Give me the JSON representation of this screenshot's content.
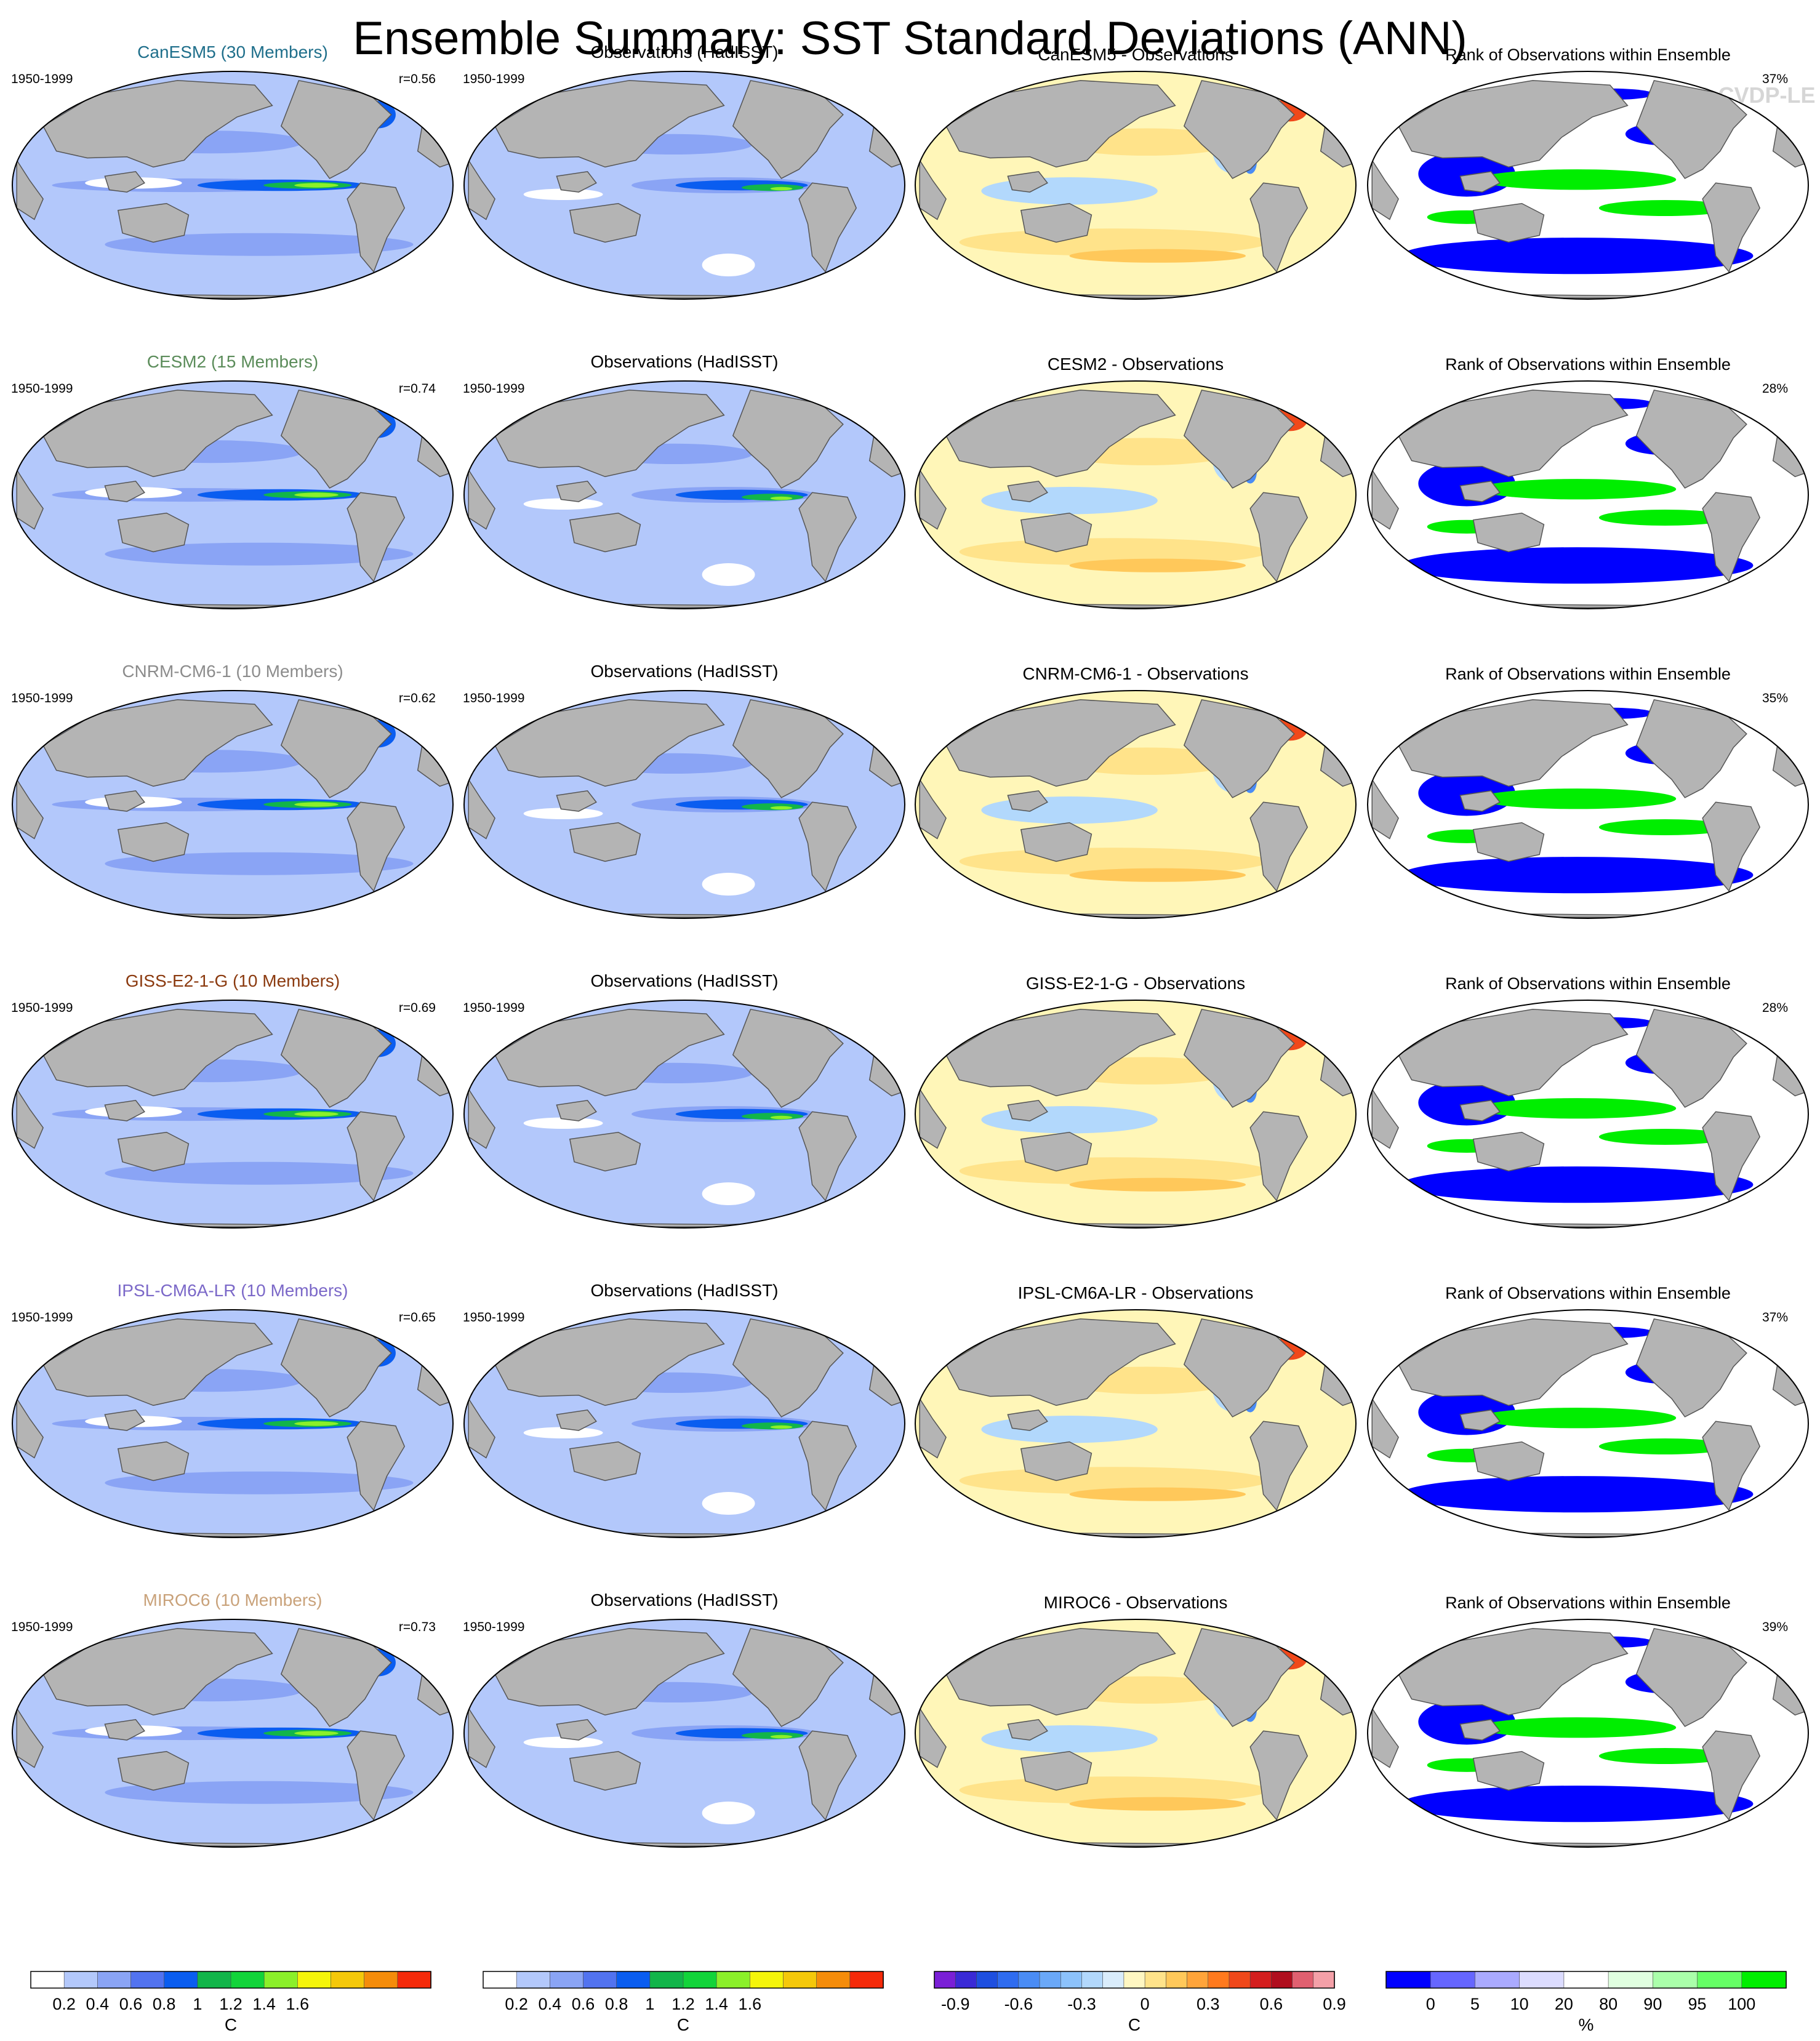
{
  "title": "Ensemble Summary: SST Standard Deviations (ANN)",
  "watermark": "© CVDP-LE",
  "colors": {
    "land": "#b4b4b4",
    "ocean_base_model": "#b3c8fb",
    "ocean_base_diff": "#fff6b8",
    "ocean_base_rank": "#ffffff",
    "coast": "#555555"
  },
  "rows": [
    {
      "model": "CanESM5 (30 Members)",
      "model_color": "#1f6f8b",
      "period_model": "1950-1999",
      "r": "r=0.56",
      "obs_title": "Observations (HadISST)",
      "period_obs": "1950-1999",
      "diff_title": "CanESM5 - Observations",
      "rank_title": "Rank of Observations within Ensemble",
      "rank_pct": "37%"
    },
    {
      "model": "CESM2 (15 Members)",
      "model_color": "#5b8c5a",
      "period_model": "1950-1999",
      "r": "r=0.74",
      "obs_title": "Observations (HadISST)",
      "period_obs": "1950-1999",
      "diff_title": "CESM2 - Observations",
      "rank_title": "Rank of Observations within Ensemble",
      "rank_pct": "28%"
    },
    {
      "model": "CNRM-CM6-1 (10 Members)",
      "model_color": "#8c8c8c",
      "period_model": "1950-1999",
      "r": "r=0.62",
      "obs_title": "Observations (HadISST)",
      "period_obs": "1950-1999",
      "diff_title": "CNRM-CM6-1 - Observations",
      "rank_title": "Rank of Observations within Ensemble",
      "rank_pct": "35%"
    },
    {
      "model": "GISS-E2-1-G (10 Members)",
      "model_color": "#8b3a0f",
      "period_model": "1950-1999",
      "r": "r=0.69",
      "obs_title": "Observations (HadISST)",
      "period_obs": "1950-1999",
      "diff_title": "GISS-E2-1-G - Observations",
      "rank_title": "Rank of Observations within Ensemble",
      "rank_pct": "28%"
    },
    {
      "model": "IPSL-CM6A-LR (10 Members)",
      "model_color": "#7b68c8",
      "period_model": "1950-1999",
      "r": "r=0.65",
      "obs_title": "Observations (HadISST)",
      "period_obs": "1950-1999",
      "diff_title": "IPSL-CM6A-LR - Observations",
      "rank_title": "Rank of Observations within Ensemble",
      "rank_pct": "37%"
    },
    {
      "model": "MIROC6 (10 Members)",
      "model_color": "#c9a27a",
      "period_model": "1950-1999",
      "r": "r=0.73",
      "obs_title": "Observations (HadISST)",
      "period_obs": "1950-1999",
      "diff_title": "MIROC6 - Observations",
      "rank_title": "Rank of Observations within Ensemble",
      "rank_pct": "39%"
    }
  ],
  "colorbars": [
    {
      "unit": "C",
      "colors": [
        "#ffffff",
        "#b3c8fb",
        "#8aa4f5",
        "#5273f0",
        "#0a5df0",
        "#12b54a",
        "#12d43a",
        "#8bf02a",
        "#f5f50a",
        "#f5c80a",
        "#f58c0a",
        "#f52a0a"
      ],
      "labels": [
        "0.2",
        "0.4",
        "0.6",
        "0.8",
        "1",
        "1.2",
        "1.4",
        "1.6"
      ]
    },
    {
      "unit": "C",
      "colors": [
        "#ffffff",
        "#b3c8fb",
        "#8aa4f5",
        "#5273f0",
        "#0a5df0",
        "#12b54a",
        "#12d43a",
        "#8bf02a",
        "#f5f50a",
        "#f5c80a",
        "#f58c0a",
        "#f52a0a"
      ],
      "labels": [
        "0.2",
        "0.4",
        "0.6",
        "0.8",
        "1",
        "1.2",
        "1.4",
        "1.6"
      ]
    },
    {
      "unit": "C",
      "colors": [
        "#7a1fd6",
        "#3a2ad6",
        "#1e4fe0",
        "#2f6cf0",
        "#4a8cf5",
        "#6aa8f8",
        "#8cc2fb",
        "#b2d8fc",
        "#d9ecfb",
        "#fff7c2",
        "#ffe38a",
        "#ffc85a",
        "#ffa43a",
        "#ff7a1e",
        "#f0481a",
        "#d41e1e",
        "#b00e1e",
        "#e06070",
        "#f4a0a8"
      ],
      "labels": [
        "-0.9",
        "-0.6",
        "-0.3",
        "0",
        "0.3",
        "0.6",
        "0.9"
      ]
    },
    {
      "unit": "%",
      "colors": [
        "#0000ff",
        "#6666ff",
        "#aaaaff",
        "#dcdcff",
        "#ffffff",
        "#e0ffe0",
        "#aaffaa",
        "#66ff66",
        "#00ee00"
      ],
      "labels": [
        "0",
        "5",
        "10",
        "20",
        "80",
        "90",
        "95",
        "100"
      ]
    }
  ]
}
